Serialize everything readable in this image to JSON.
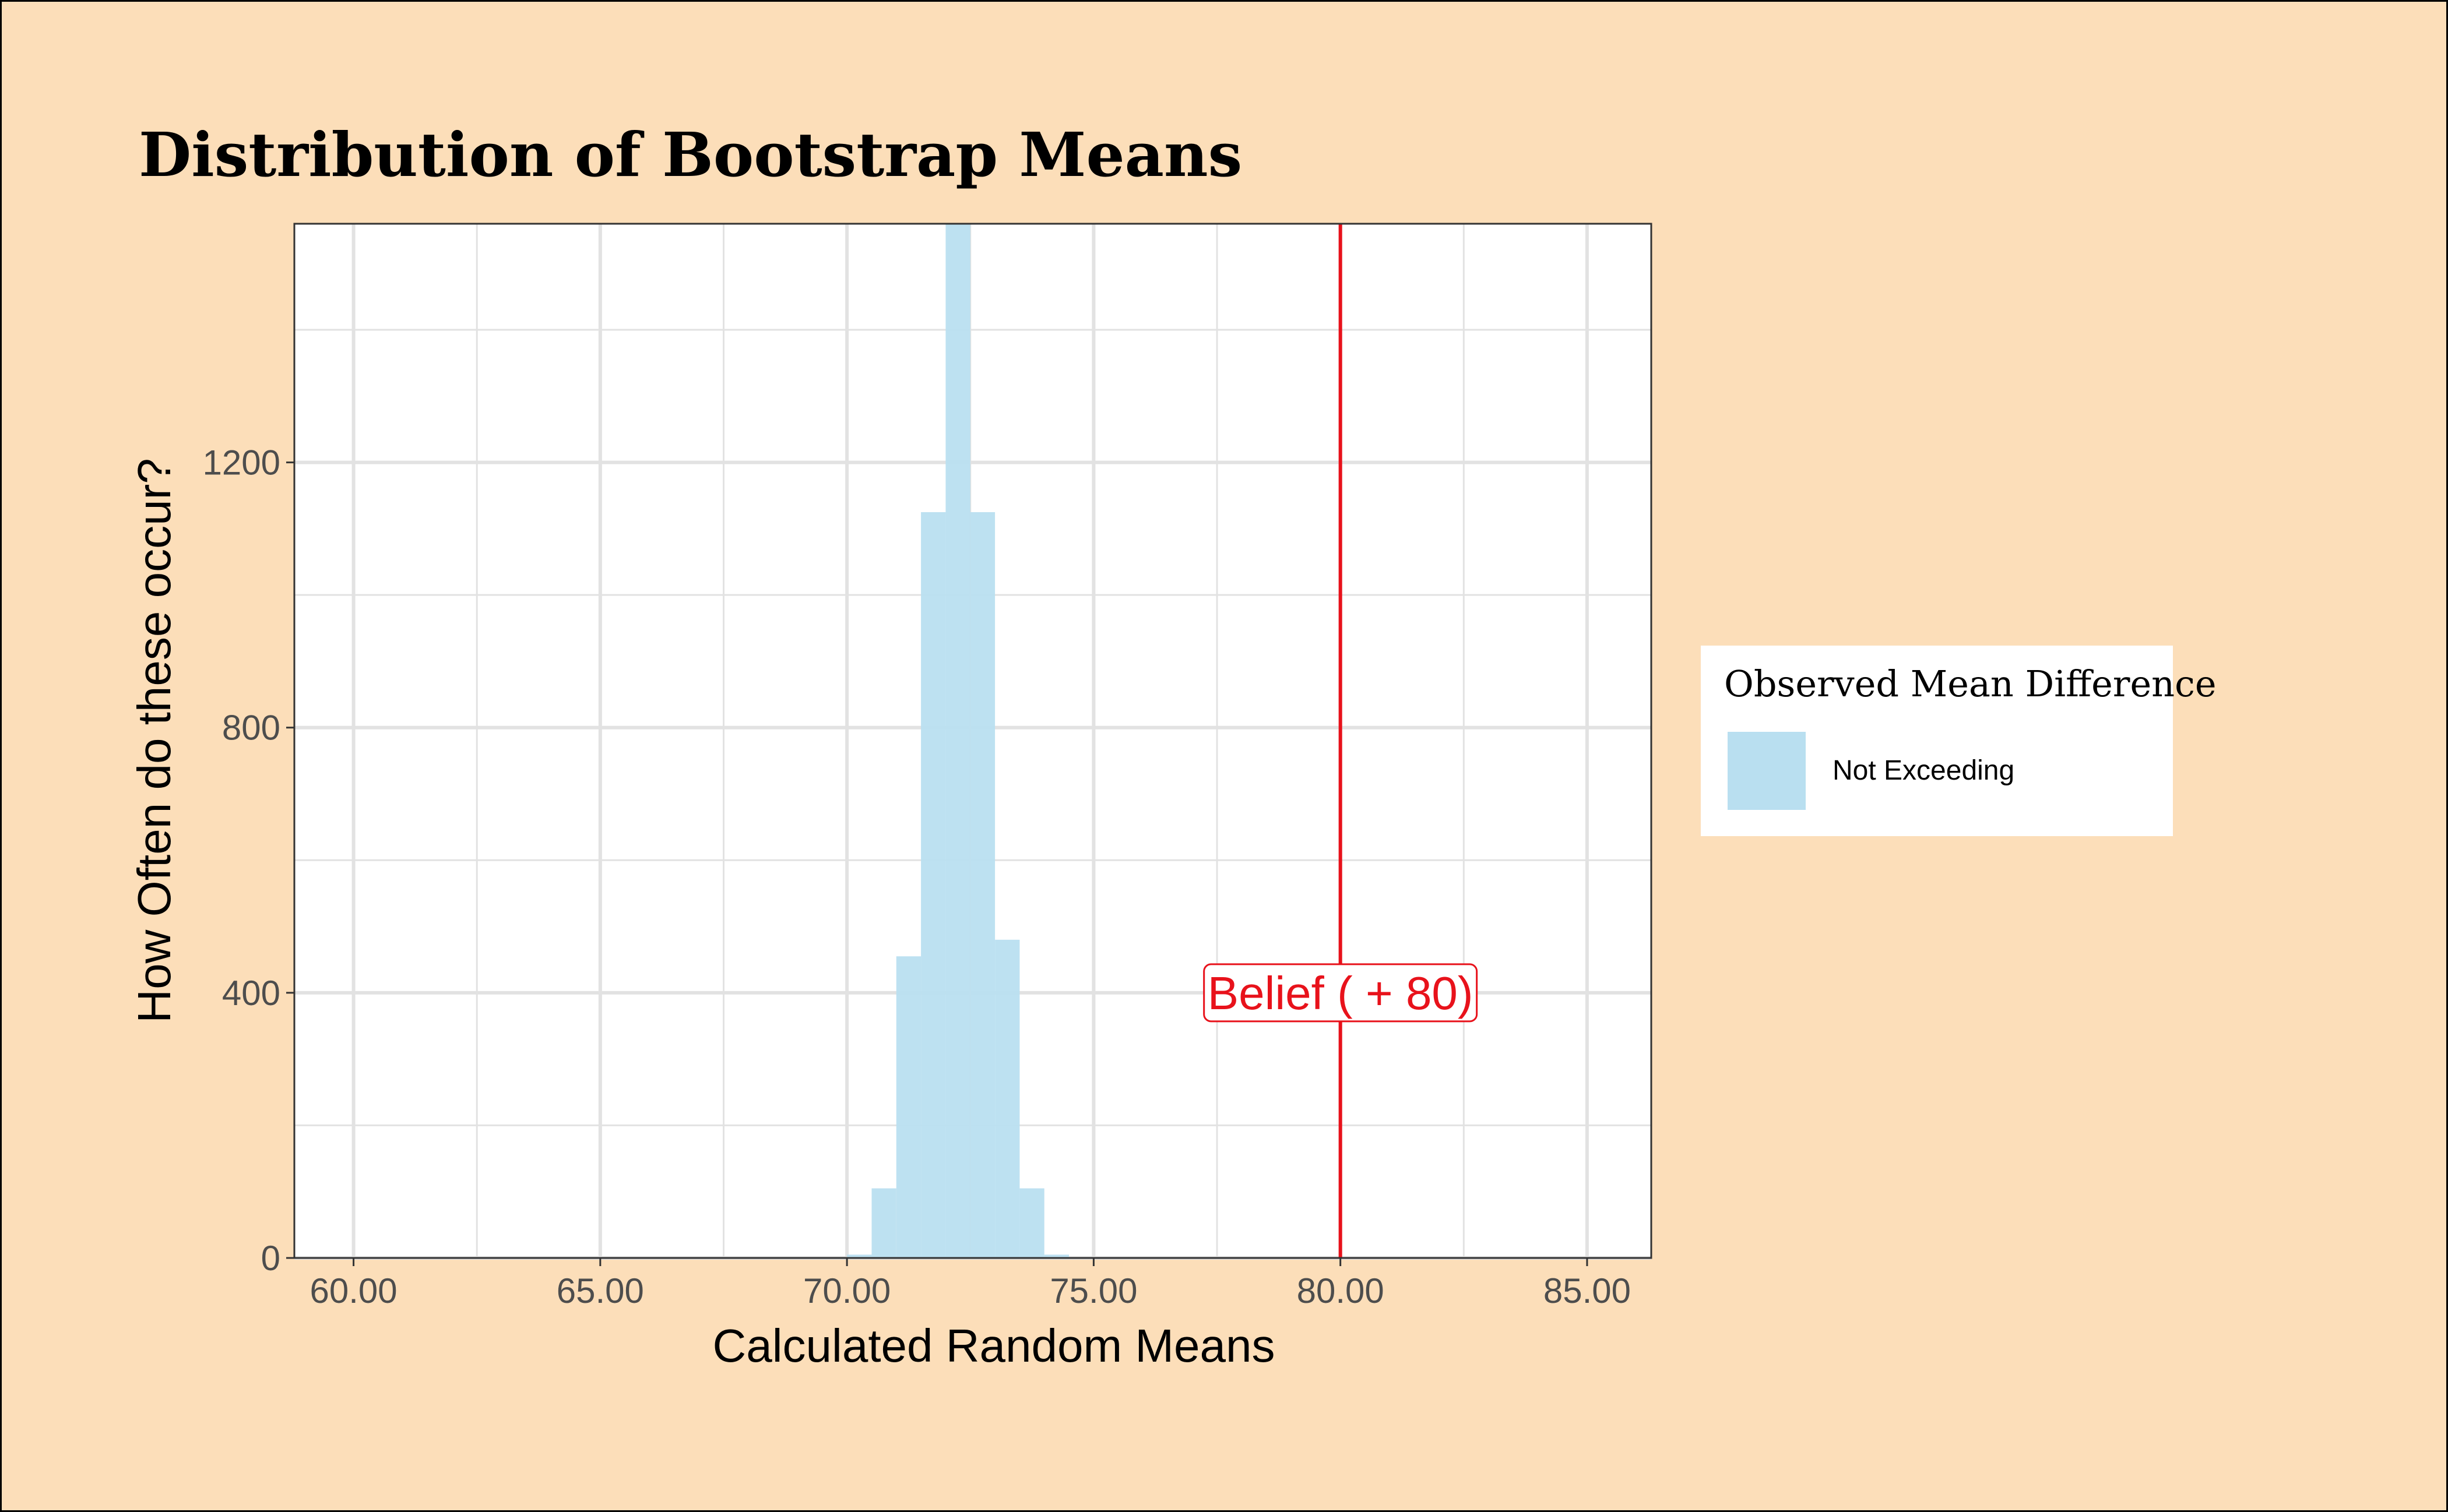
{
  "chart_data": {
    "type": "bar",
    "title": "Distribution of Bootstrap Means",
    "xlabel": "Calculated Random Means",
    "ylabel": "How Often do these occur?",
    "xlim": [
      58.8,
      86.3
    ],
    "ylim": [
      0,
      1560
    ],
    "x_ticks": [
      60,
      65,
      70,
      75,
      80,
      85
    ],
    "x_tick_labels": [
      "60.00",
      "65.00",
      "70.00",
      "75.00",
      "80.00",
      "85.00"
    ],
    "x_minor_ticks": [
      62.5,
      67.5,
      72.5,
      77.5,
      82.5
    ],
    "y_ticks": [
      0,
      400,
      800,
      1200
    ],
    "y_tick_labels": [
      "0",
      "400",
      "800",
      "1200"
    ],
    "y_minor_ticks": [
      200,
      600,
      1000,
      1400
    ],
    "grid": true,
    "bin_width": 0.5,
    "bins": [
      {
        "start": 70.0,
        "count": 5
      },
      {
        "start": 70.5,
        "count": 105
      },
      {
        "start": 71.0,
        "count": 455
      },
      {
        "start": 71.5,
        "count": 1125
      },
      {
        "start": 72.0,
        "count": 1560
      },
      {
        "start": 72.5,
        "count": 1125
      },
      {
        "start": 73.0,
        "count": 480
      },
      {
        "start": 73.5,
        "count": 105
      },
      {
        "start": 74.0,
        "count": 5
      }
    ],
    "reference_line": {
      "x": 80,
      "label": "Belief ( + 80)",
      "label_y": 400,
      "color": "#e8121b"
    },
    "legend": {
      "title": "Observed Mean Difference",
      "entries": [
        {
          "label": "Not Exceeding",
          "color": "#b9dff0"
        }
      ],
      "placement": "right"
    },
    "colors": {
      "background": "#fcdeb9",
      "panel": "#ffffff",
      "bar_fill": "#b9dff0",
      "grid": "#e2e2e2",
      "axis_text": "#4d4d4d"
    }
  }
}
